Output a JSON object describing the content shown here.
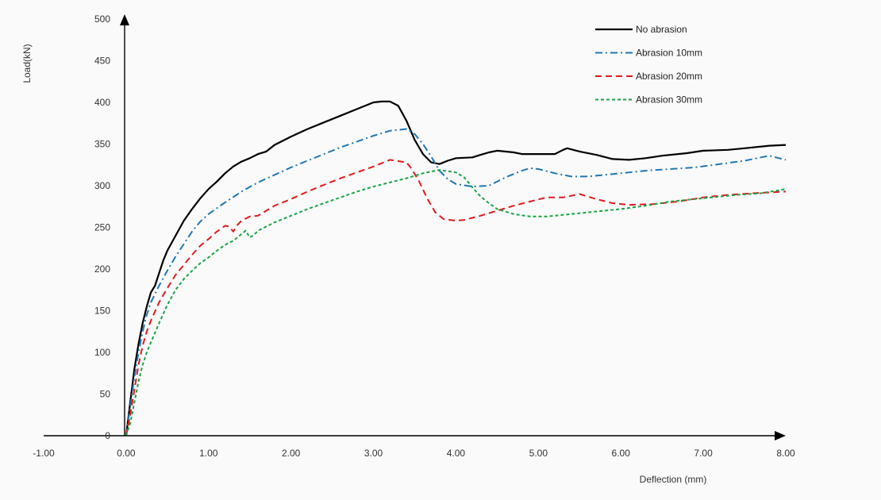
{
  "chart_data": {
    "type": "line",
    "title": "",
    "xlabel": "Deflection (mm)",
    "ylabel": "Load(kN)",
    "xlim": [
      -1,
      8
    ],
    "ylim": [
      0,
      500
    ],
    "x_ticks": [
      "-1.00",
      "0.00",
      "1.00",
      "2.00",
      "3.00",
      "4.00",
      "5.00",
      "6.00",
      "7.00",
      "8.00"
    ],
    "y_ticks": [
      "0",
      "50",
      "100",
      "150",
      "200",
      "250",
      "300",
      "350",
      "400",
      "450",
      "500"
    ],
    "grid": false,
    "legend_position": "top-right",
    "series": [
      {
        "name": "No abrasion",
        "color": "#000000",
        "dash": "solid",
        "points": [
          [
            0,
            0
          ],
          [
            0.05,
            40
          ],
          [
            0.1,
            80
          ],
          [
            0.15,
            110
          ],
          [
            0.2,
            135
          ],
          [
            0.25,
            155
          ],
          [
            0.3,
            172
          ],
          [
            0.35,
            180
          ],
          [
            0.4,
            195
          ],
          [
            0.45,
            210
          ],
          [
            0.5,
            222
          ],
          [
            0.6,
            240
          ],
          [
            0.7,
            258
          ],
          [
            0.8,
            272
          ],
          [
            0.9,
            285
          ],
          [
            1.0,
            296
          ],
          [
            1.1,
            305
          ],
          [
            1.2,
            315
          ],
          [
            1.3,
            323
          ],
          [
            1.4,
            329
          ],
          [
            1.5,
            333
          ],
          [
            1.6,
            338
          ],
          [
            1.7,
            341
          ],
          [
            1.8,
            349
          ],
          [
            2.0,
            359
          ],
          [
            2.2,
            368
          ],
          [
            2.4,
            376
          ],
          [
            2.6,
            384
          ],
          [
            2.8,
            392
          ],
          [
            3.0,
            400
          ],
          [
            3.1,
            401
          ],
          [
            3.2,
            401
          ],
          [
            3.3,
            396
          ],
          [
            3.4,
            378
          ],
          [
            3.5,
            355
          ],
          [
            3.6,
            338
          ],
          [
            3.7,
            328
          ],
          [
            3.8,
            326
          ],
          [
            3.9,
            330
          ],
          [
            4.0,
            333
          ],
          [
            4.2,
            334
          ],
          [
            4.3,
            337
          ],
          [
            4.4,
            340
          ],
          [
            4.5,
            342
          ],
          [
            4.7,
            340
          ],
          [
            4.8,
            338
          ],
          [
            5.0,
            338
          ],
          [
            5.2,
            338
          ],
          [
            5.3,
            343
          ],
          [
            5.35,
            345
          ],
          [
            5.5,
            341
          ],
          [
            5.7,
            337
          ],
          [
            5.9,
            332
          ],
          [
            6.1,
            331
          ],
          [
            6.3,
            333
          ],
          [
            6.5,
            336
          ],
          [
            6.8,
            339
          ],
          [
            7.0,
            342
          ],
          [
            7.3,
            343
          ],
          [
            7.5,
            345
          ],
          [
            7.8,
            348
          ],
          [
            8.0,
            349
          ]
        ]
      },
      {
        "name": "Abrasion 10mm",
        "color": "#1f77b4",
        "dash": "dashdot",
        "points": [
          [
            0,
            0
          ],
          [
            0.05,
            35
          ],
          [
            0.1,
            70
          ],
          [
            0.15,
            100
          ],
          [
            0.2,
            125
          ],
          [
            0.25,
            145
          ],
          [
            0.3,
            160
          ],
          [
            0.4,
            180
          ],
          [
            0.5,
            198
          ],
          [
            0.6,
            215
          ],
          [
            0.7,
            230
          ],
          [
            0.8,
            245
          ],
          [
            0.9,
            257
          ],
          [
            1.0,
            266
          ],
          [
            1.2,
            280
          ],
          [
            1.4,
            293
          ],
          [
            1.6,
            304
          ],
          [
            1.8,
            313
          ],
          [
            2.0,
            322
          ],
          [
            2.2,
            330
          ],
          [
            2.4,
            338
          ],
          [
            2.6,
            346
          ],
          [
            2.8,
            353
          ],
          [
            3.0,
            360
          ],
          [
            3.2,
            366
          ],
          [
            3.4,
            368
          ],
          [
            3.5,
            362
          ],
          [
            3.6,
            350
          ],
          [
            3.7,
            335
          ],
          [
            3.8,
            318
          ],
          [
            3.9,
            308
          ],
          [
            4.0,
            302
          ],
          [
            4.2,
            299
          ],
          [
            4.4,
            300
          ],
          [
            4.6,
            310
          ],
          [
            4.8,
            318
          ],
          [
            4.9,
            321
          ],
          [
            5.0,
            320
          ],
          [
            5.2,
            315
          ],
          [
            5.4,
            311
          ],
          [
            5.6,
            311
          ],
          [
            5.8,
            313
          ],
          [
            6.0,
            315
          ],
          [
            6.3,
            318
          ],
          [
            6.6,
            320
          ],
          [
            6.9,
            322
          ],
          [
            7.2,
            326
          ],
          [
            7.5,
            330
          ],
          [
            7.8,
            336
          ],
          [
            8.0,
            331
          ]
        ]
      },
      {
        "name": "Abrasion 20mm",
        "color": "#e31a1c",
        "dash": "dash",
        "points": [
          [
            0,
            0
          ],
          [
            0.05,
            25
          ],
          [
            0.1,
            55
          ],
          [
            0.15,
            85
          ],
          [
            0.2,
            108
          ],
          [
            0.25,
            125
          ],
          [
            0.3,
            138
          ],
          [
            0.4,
            160
          ],
          [
            0.5,
            177
          ],
          [
            0.6,
            193
          ],
          [
            0.7,
            205
          ],
          [
            0.8,
            217
          ],
          [
            0.9,
            228
          ],
          [
            1.0,
            236
          ],
          [
            1.1,
            245
          ],
          [
            1.2,
            252
          ],
          [
            1.25,
            251
          ],
          [
            1.3,
            245
          ],
          [
            1.35,
            253
          ],
          [
            1.4,
            258
          ],
          [
            1.5,
            263
          ],
          [
            1.6,
            264
          ],
          [
            1.8,
            276
          ],
          [
            2.0,
            284
          ],
          [
            2.2,
            293
          ],
          [
            2.4,
            301
          ],
          [
            2.6,
            309
          ],
          [
            2.8,
            316
          ],
          [
            3.0,
            323
          ],
          [
            3.2,
            331
          ],
          [
            3.4,
            328
          ],
          [
            3.45,
            322
          ],
          [
            3.55,
            306
          ],
          [
            3.65,
            285
          ],
          [
            3.75,
            268
          ],
          [
            3.85,
            260
          ],
          [
            4.0,
            258
          ],
          [
            4.1,
            259
          ],
          [
            4.3,
            264
          ],
          [
            4.5,
            270
          ],
          [
            4.7,
            276
          ],
          [
            4.9,
            281
          ],
          [
            5.1,
            286
          ],
          [
            5.3,
            286
          ],
          [
            5.5,
            290
          ],
          [
            5.7,
            284
          ],
          [
            5.9,
            279
          ],
          [
            6.1,
            277
          ],
          [
            6.4,
            278
          ],
          [
            6.7,
            281
          ],
          [
            7.0,
            286
          ],
          [
            7.3,
            289
          ],
          [
            7.6,
            291
          ],
          [
            8.0,
            293
          ]
        ]
      },
      {
        "name": "Abrasion 30mm",
        "color": "#19a446",
        "dash": "dot",
        "points": [
          [
            0,
            0
          ],
          [
            0.05,
            15
          ],
          [
            0.1,
            40
          ],
          [
            0.15,
            65
          ],
          [
            0.2,
            85
          ],
          [
            0.25,
            100
          ],
          [
            0.3,
            112
          ],
          [
            0.4,
            135
          ],
          [
            0.5,
            157
          ],
          [
            0.6,
            175
          ],
          [
            0.7,
            188
          ],
          [
            0.8,
            198
          ],
          [
            0.9,
            207
          ],
          [
            1.0,
            214
          ],
          [
            1.1,
            222
          ],
          [
            1.2,
            229
          ],
          [
            1.3,
            234
          ],
          [
            1.4,
            242
          ],
          [
            1.45,
            246
          ],
          [
            1.5,
            238
          ],
          [
            1.55,
            241
          ],
          [
            1.6,
            246
          ],
          [
            1.8,
            256
          ],
          [
            2.0,
            264
          ],
          [
            2.2,
            272
          ],
          [
            2.4,
            279
          ],
          [
            2.6,
            286
          ],
          [
            2.8,
            293
          ],
          [
            3.0,
            299
          ],
          [
            3.2,
            304
          ],
          [
            3.4,
            309
          ],
          [
            3.6,
            315
          ],
          [
            3.8,
            319
          ],
          [
            4.0,
            316
          ],
          [
            4.1,
            310
          ],
          [
            4.2,
            298
          ],
          [
            4.3,
            287
          ],
          [
            4.4,
            279
          ],
          [
            4.5,
            272
          ],
          [
            4.7,
            266
          ],
          [
            4.9,
            263
          ],
          [
            5.1,
            263
          ],
          [
            5.4,
            266
          ],
          [
            5.7,
            269
          ],
          [
            6.0,
            272
          ],
          [
            6.3,
            276
          ],
          [
            6.6,
            281
          ],
          [
            7.0,
            285
          ],
          [
            7.4,
            289
          ],
          [
            7.7,
            291
          ],
          [
            8.0,
            296
          ]
        ]
      }
    ]
  }
}
